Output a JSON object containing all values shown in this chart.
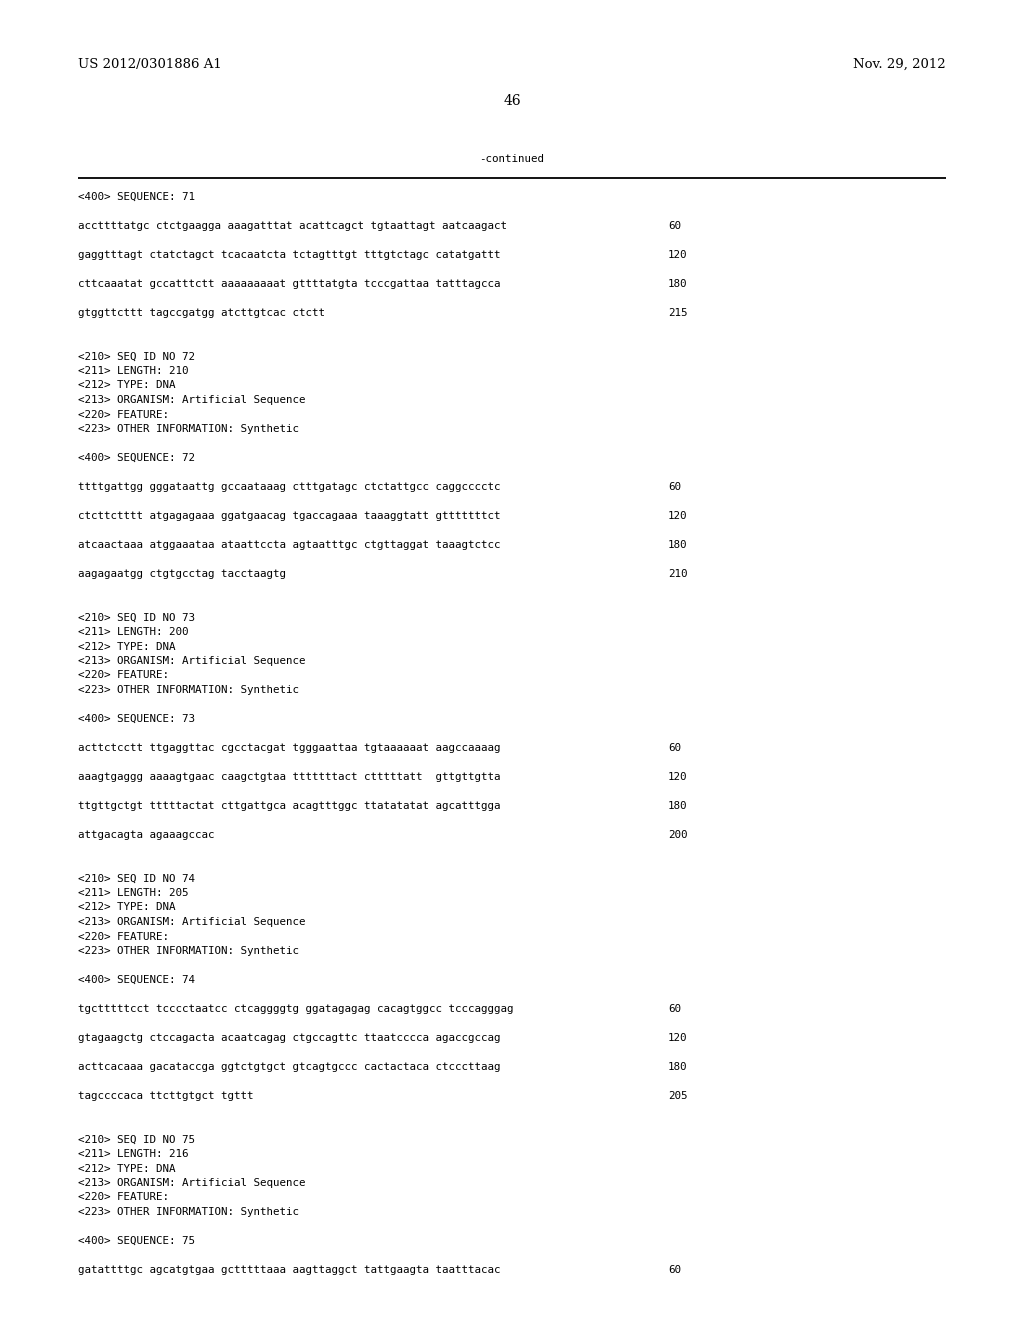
{
  "background_color": "#ffffff",
  "text_color": "#000000",
  "header_left": "US 2012/0301886 A1",
  "header_right": "Nov. 29, 2012",
  "page_number": "46",
  "continued_text": "-continued",
  "font_size_header": 9.5,
  "font_size_body": 7.8,
  "font_size_page": 10,
  "body_lines": [
    {
      "text": "<400> SEQUENCE: 71",
      "num": null
    },
    {
      "text": "",
      "num": null
    },
    {
      "text": "accttttatgc ctctgaagga aaagatttat acattcagct tgtaattagt aatcaagact",
      "num": "60"
    },
    {
      "text": "",
      "num": null
    },
    {
      "text": "gaggtttagt ctatctagct tcacaatcta tctagtttgt tttgtctagc catatgattt",
      "num": "120"
    },
    {
      "text": "",
      "num": null
    },
    {
      "text": "cttcaaatat gccatttctt aaaaaaaaat gttttatgta tcccgattaa tatttagcca",
      "num": "180"
    },
    {
      "text": "",
      "num": null
    },
    {
      "text": "gtggttcttt tagccgatgg atcttgtcac ctctt",
      "num": "215"
    },
    {
      "text": "",
      "num": null
    },
    {
      "text": "",
      "num": null
    },
    {
      "text": "<210> SEQ ID NO 72",
      "num": null
    },
    {
      "text": "<211> LENGTH: 210",
      "num": null
    },
    {
      "text": "<212> TYPE: DNA",
      "num": null
    },
    {
      "text": "<213> ORGANISM: Artificial Sequence",
      "num": null
    },
    {
      "text": "<220> FEATURE:",
      "num": null
    },
    {
      "text": "<223> OTHER INFORMATION: Synthetic",
      "num": null
    },
    {
      "text": "",
      "num": null
    },
    {
      "text": "<400> SEQUENCE: 72",
      "num": null
    },
    {
      "text": "",
      "num": null
    },
    {
      "text": "ttttgattgg gggataattg gccaataaag ctttgatagc ctctattgcc caggcccctc",
      "num": "60"
    },
    {
      "text": "",
      "num": null
    },
    {
      "text": "ctcttctttt atgagagaaa ggatgaacag tgaccagaaa taaaggtatt gtttttttct",
      "num": "120"
    },
    {
      "text": "",
      "num": null
    },
    {
      "text": "atcaactaaa atggaaataa ataattccta agtaatttgc ctgttaggat taaagtctcc",
      "num": "180"
    },
    {
      "text": "",
      "num": null
    },
    {
      "text": "aagagaatgg ctgtgcctag tacctaagtg",
      "num": "210"
    },
    {
      "text": "",
      "num": null
    },
    {
      "text": "",
      "num": null
    },
    {
      "text": "<210> SEQ ID NO 73",
      "num": null
    },
    {
      "text": "<211> LENGTH: 200",
      "num": null
    },
    {
      "text": "<212> TYPE: DNA",
      "num": null
    },
    {
      "text": "<213> ORGANISM: Artificial Sequence",
      "num": null
    },
    {
      "text": "<220> FEATURE:",
      "num": null
    },
    {
      "text": "<223> OTHER INFORMATION: Synthetic",
      "num": null
    },
    {
      "text": "",
      "num": null
    },
    {
      "text": "<400> SEQUENCE: 73",
      "num": null
    },
    {
      "text": "",
      "num": null
    },
    {
      "text": "acttctcctt ttgaggttac cgcctacgat tgggaattaa tgtaaaaaat aagccaaaag",
      "num": "60"
    },
    {
      "text": "",
      "num": null
    },
    {
      "text": "aaagtgaggg aaaagtgaac caagctgtaa tttttttact ctttttatt  gttgttgtta",
      "num": "120"
    },
    {
      "text": "",
      "num": null
    },
    {
      "text": "ttgttgctgt tttttactat cttgattgca acagtttggc ttatatatat agcatttgga",
      "num": "180"
    },
    {
      "text": "",
      "num": null
    },
    {
      "text": "attgacagta agaaagccac",
      "num": "200"
    },
    {
      "text": "",
      "num": null
    },
    {
      "text": "",
      "num": null
    },
    {
      "text": "<210> SEQ ID NO 74",
      "num": null
    },
    {
      "text": "<211> LENGTH: 205",
      "num": null
    },
    {
      "text": "<212> TYPE: DNA",
      "num": null
    },
    {
      "text": "<213> ORGANISM: Artificial Sequence",
      "num": null
    },
    {
      "text": "<220> FEATURE:",
      "num": null
    },
    {
      "text": "<223> OTHER INFORMATION: Synthetic",
      "num": null
    },
    {
      "text": "",
      "num": null
    },
    {
      "text": "<400> SEQUENCE: 74",
      "num": null
    },
    {
      "text": "",
      "num": null
    },
    {
      "text": "tgctttttcct tcccctaatcc ctcaggggtg ggatagagag cacagtggcc tcccagggag",
      "num": "60"
    },
    {
      "text": "",
      "num": null
    },
    {
      "text": "gtagaagctg ctccagacta acaatcagag ctgccagttc ttaatcccca agaccgccag",
      "num": "120"
    },
    {
      "text": "",
      "num": null
    },
    {
      "text": "acttcacaaa gacataccga ggtctgtgct gtcagtgccc cactactaca ctcccttaag",
      "num": "180"
    },
    {
      "text": "",
      "num": null
    },
    {
      "text": "tagccccaca ttcttgtgct tgttt",
      "num": "205"
    },
    {
      "text": "",
      "num": null
    },
    {
      "text": "",
      "num": null
    },
    {
      "text": "<210> SEQ ID NO 75",
      "num": null
    },
    {
      "text": "<211> LENGTH: 216",
      "num": null
    },
    {
      "text": "<212> TYPE: DNA",
      "num": null
    },
    {
      "text": "<213> ORGANISM: Artificial Sequence",
      "num": null
    },
    {
      "text": "<220> FEATURE:",
      "num": null
    },
    {
      "text": "<223> OTHER INFORMATION: Synthetic",
      "num": null
    },
    {
      "text": "",
      "num": null
    },
    {
      "text": "<400> SEQUENCE: 75",
      "num": null
    },
    {
      "text": "",
      "num": null
    },
    {
      "text": "gatattttgc agcatgtgaa gctttttaaa aagttaggct tattgaagta taatttacac",
      "num": "60"
    }
  ]
}
